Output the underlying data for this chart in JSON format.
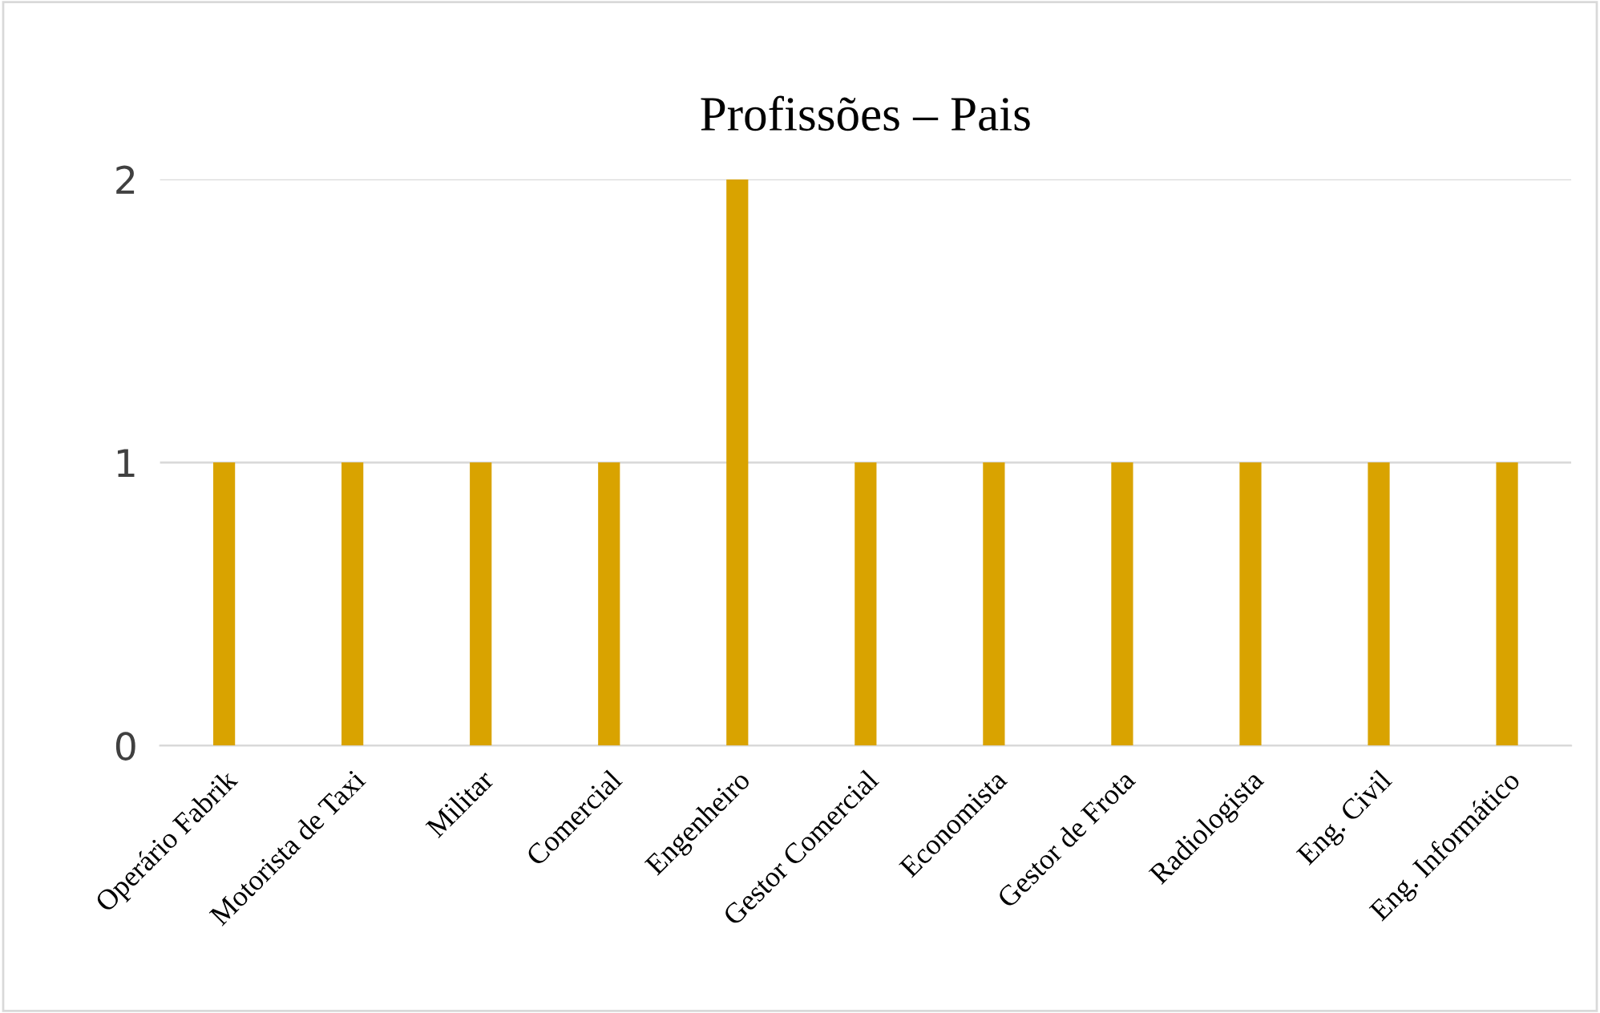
{
  "chart_data": {
    "type": "bar",
    "title": "Profissões – Pais",
    "categories": [
      "Operário Fabrik",
      "Motorista de Taxi",
      "Militar",
      "Comercial",
      "Engenheiro",
      "Gestor Comercial",
      "Economista",
      "Gestor de Frota",
      "Radiologista",
      "Eng. Civil",
      "Eng. Informático"
    ],
    "values": [
      1,
      1,
      1,
      1,
      2,
      1,
      1,
      1,
      1,
      1,
      1
    ],
    "color": "#d9a300",
    "ylim": [
      0,
      2
    ],
    "yticks": [
      0,
      1,
      2
    ],
    "grid": "y",
    "legend": false
  }
}
